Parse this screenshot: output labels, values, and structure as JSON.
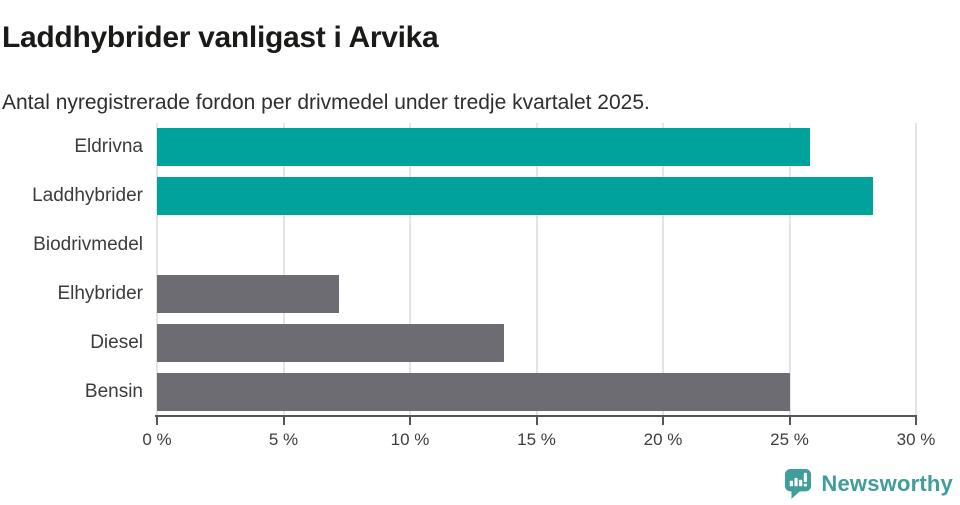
{
  "header": {
    "title": "Laddhybrider vanligast i Arvika",
    "subtitle": "Antal nyregistrerade fordon per drivmedel under tredje kvartalet 2025."
  },
  "chart_data": {
    "type": "bar",
    "orientation": "horizontal",
    "title": "Laddhybrider vanligast i Arvika",
    "subtitle": "Antal nyregistrerade fordon per drivmedel under tredje kvartalet 2025.",
    "categories": [
      "Eldrivna",
      "Laddhybrider",
      "Biodrivmedel",
      "Elhybrider",
      "Diesel",
      "Bensin"
    ],
    "values": [
      25.8,
      28.3,
      0,
      7.2,
      13.7,
      25.0
    ],
    "unit": "%",
    "xlim": [
      0,
      30
    ],
    "xticks": [
      0,
      5,
      10,
      15,
      20,
      25,
      30
    ],
    "xtick_labels": [
      "0 %",
      "5 %",
      "10 %",
      "15 %",
      "20 %",
      "25 %",
      "30 %"
    ],
    "bar_colors": [
      "#00a39b",
      "#00a39b",
      "#6d6c72",
      "#6d6c72",
      "#6d6c72",
      "#6d6c72"
    ],
    "highlight_color": "#00a39b",
    "default_color": "#6d6c72",
    "grid": true,
    "legend": false
  },
  "footer": {
    "brand": "Newsworthy",
    "brand_color": "#3f9d9a",
    "brand_icon": "bar-chart-speech-bubble-icon"
  }
}
